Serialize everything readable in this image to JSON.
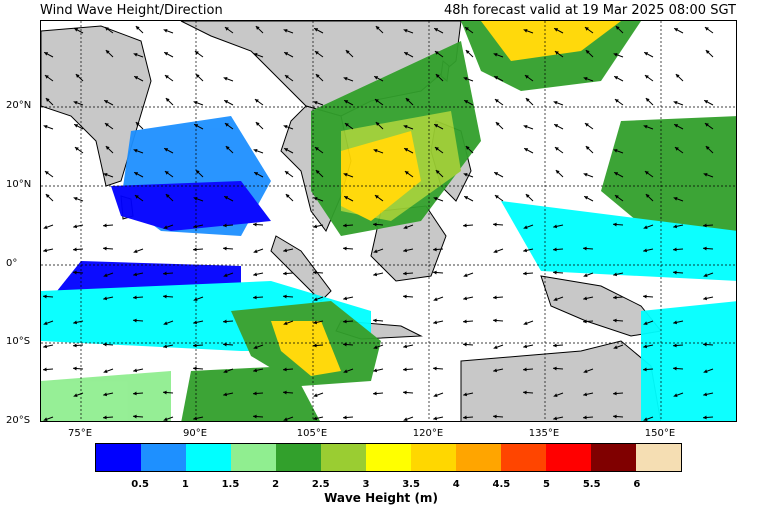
{
  "header": {
    "title": "Wind Wave Height/Direction",
    "valid_time": "48h forecast valid at 19 Mar 2025 08:00 SGT"
  },
  "axes": {
    "lat_labels": [
      "20°N",
      "10°N",
      "0°",
      "10°S",
      "20°S"
    ],
    "lon_labels": [
      "75°E",
      "90°E",
      "105°E",
      "120°E",
      "135°E",
      "150°E"
    ]
  },
  "colorbar": {
    "label": "Wave Height (m)",
    "ticks": [
      "0.5",
      "1",
      "1.5",
      "2",
      "2.5",
      "3",
      "3.5",
      "4",
      "4.5",
      "5",
      "5.5",
      "6"
    ],
    "colors": [
      "#0000ff",
      "#1e90ff",
      "#00ffff",
      "#90ee90",
      "#32a02c",
      "#9acd32",
      "#ffff00",
      "#ffd700",
      "#ffa500",
      "#ff4500",
      "#ff0000",
      "#800000",
      "#f5deb3"
    ]
  },
  "map_style": {
    "land_color": "#c8c8c8",
    "grid": true
  }
}
